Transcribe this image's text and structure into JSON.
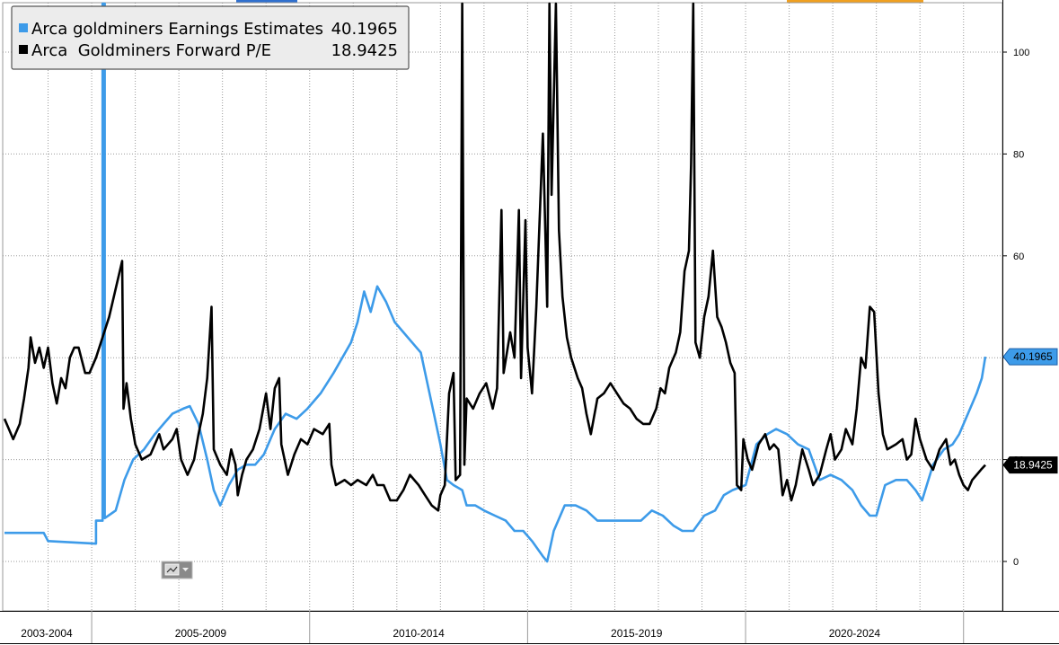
{
  "chart_data": {
    "type": "line",
    "colors": {
      "earnings": "#3d9be9",
      "pe": "#000000",
      "grid": "#9a9a9a",
      "tab_top_blue": "#2f6fce",
      "tab_top_orange": "#f0a020"
    },
    "legend": {
      "entries": [
        {
          "name": "Arca goldminers Earnings Estimates",
          "value": "40.1965"
        },
        {
          "name": "Arca  Goldminers Forward P/E",
          "value": "18.9425"
        }
      ],
      "placement": "top-left"
    },
    "y_axis": {
      "position": "right",
      "range": [
        -10,
        110
      ],
      "ticks": [
        "0",
        "20",
        "40",
        "60",
        "80",
        "100"
      ]
    },
    "x_axis": {
      "range": [
        2003.0,
        2025.5
      ],
      "bands": [
        "2003-2004",
        "2005-2009",
        "2010-2014",
        "2015-2019",
        "2020-2024"
      ]
    },
    "last_value_tags": [
      {
        "series": "earnings",
        "label": "40.1965",
        "value": 40.1965
      },
      {
        "series": "pe",
        "label": "18.9425",
        "value": 18.9425
      }
    ],
    "grid": true,
    "series": [
      {
        "key": "earnings",
        "name": "Arca goldminers Earnings Estimates",
        "points": [
          [
            2003.0,
            5.6
          ],
          [
            2003.9,
            5.6
          ],
          [
            2004.0,
            4.0
          ],
          [
            2005.1,
            3.5
          ],
          [
            2005.1,
            8.0
          ],
          [
            2005.25,
            8.0
          ],
          [
            2005.25,
            110
          ],
          [
            2005.3,
            110
          ],
          [
            2005.3,
            8.5
          ],
          [
            2005.55,
            10
          ],
          [
            2005.75,
            16
          ],
          [
            2005.95,
            20
          ],
          [
            2006.2,
            22
          ],
          [
            2006.45,
            25
          ],
          [
            2006.65,
            27
          ],
          [
            2006.85,
            29
          ],
          [
            2007.1,
            30
          ],
          [
            2007.25,
            30.5
          ],
          [
            2007.45,
            27
          ],
          [
            2007.65,
            20
          ],
          [
            2007.8,
            14
          ],
          [
            2007.95,
            11
          ],
          [
            2008.15,
            15
          ],
          [
            2008.35,
            18
          ],
          [
            2008.55,
            19
          ],
          [
            2008.75,
            19
          ],
          [
            2008.95,
            21
          ],
          [
            2009.2,
            26
          ],
          [
            2009.45,
            29
          ],
          [
            2009.7,
            28
          ],
          [
            2009.95,
            30
          ],
          [
            2010.25,
            33
          ],
          [
            2010.55,
            37
          ],
          [
            2010.75,
            40
          ],
          [
            2010.95,
            43
          ],
          [
            2011.1,
            47
          ],
          [
            2011.25,
            53
          ],
          [
            2011.4,
            49
          ],
          [
            2011.55,
            54
          ],
          [
            2011.75,
            51
          ],
          [
            2011.95,
            47
          ],
          [
            2012.15,
            45
          ],
          [
            2012.35,
            43
          ],
          [
            2012.55,
            41
          ],
          [
            2012.7,
            35
          ],
          [
            2012.85,
            29
          ],
          [
            2013.0,
            23
          ],
          [
            2013.15,
            16
          ],
          [
            2013.3,
            15
          ],
          [
            2013.5,
            14
          ],
          [
            2013.6,
            11
          ],
          [
            2013.8,
            11
          ],
          [
            2014.0,
            10
          ],
          [
            2014.25,
            9
          ],
          [
            2014.5,
            8
          ],
          [
            2014.7,
            6
          ],
          [
            2014.9,
            6
          ],
          [
            2015.1,
            4
          ],
          [
            2015.35,
            1
          ],
          [
            2015.45,
            0
          ],
          [
            2015.6,
            6
          ],
          [
            2015.85,
            11
          ],
          [
            2016.1,
            11
          ],
          [
            2016.35,
            10
          ],
          [
            2016.6,
            8
          ],
          [
            2016.85,
            8
          ],
          [
            2017.1,
            8
          ],
          [
            2017.35,
            8
          ],
          [
            2017.6,
            8
          ],
          [
            2017.85,
            10
          ],
          [
            2018.1,
            9
          ],
          [
            2018.35,
            7
          ],
          [
            2018.55,
            6
          ],
          [
            2018.8,
            6
          ],
          [
            2019.05,
            9
          ],
          [
            2019.3,
            10
          ],
          [
            2019.5,
            13
          ],
          [
            2019.7,
            14
          ],
          [
            2020.0,
            15
          ],
          [
            2020.25,
            23
          ],
          [
            2020.5,
            25
          ],
          [
            2020.7,
            26
          ],
          [
            2020.95,
            25
          ],
          [
            2021.2,
            23
          ],
          [
            2021.45,
            22
          ],
          [
            2021.7,
            16
          ],
          [
            2021.95,
            17
          ],
          [
            2022.2,
            16
          ],
          [
            2022.45,
            14
          ],
          [
            2022.65,
            11
          ],
          [
            2022.85,
            9
          ],
          [
            2023.0,
            9
          ],
          [
            2023.2,
            15
          ],
          [
            2023.45,
            16
          ],
          [
            2023.7,
            16
          ],
          [
            2023.9,
            14
          ],
          [
            2024.05,
            12
          ],
          [
            2024.3,
            19
          ],
          [
            2024.55,
            22
          ],
          [
            2024.75,
            23
          ],
          [
            2024.9,
            25
          ],
          [
            2025.1,
            29
          ],
          [
            2025.3,
            33
          ],
          [
            2025.42,
            36
          ],
          [
            2025.5,
            40.1965
          ]
        ]
      },
      {
        "key": "pe",
        "name": "Arca  Goldminers Forward P/E",
        "points": [
          [
            2003.0,
            28
          ],
          [
            2003.1,
            26
          ],
          [
            2003.2,
            24
          ],
          [
            2003.35,
            27
          ],
          [
            2003.45,
            32
          ],
          [
            2003.55,
            38
          ],
          [
            2003.6,
            44
          ],
          [
            2003.7,
            39
          ],
          [
            2003.8,
            42
          ],
          [
            2003.9,
            38
          ],
          [
            2004.0,
            42
          ],
          [
            2004.1,
            35
          ],
          [
            2004.2,
            31
          ],
          [
            2004.3,
            36
          ],
          [
            2004.4,
            34
          ],
          [
            2004.5,
            40
          ],
          [
            2004.6,
            42
          ],
          [
            2004.7,
            42
          ],
          [
            2004.85,
            37
          ],
          [
            2004.95,
            37
          ],
          [
            2005.1,
            40
          ],
          [
            2005.4,
            48
          ],
          [
            2005.7,
            59
          ],
          [
            2005.73,
            30
          ],
          [
            2005.8,
            35
          ],
          [
            2005.9,
            28
          ],
          [
            2006.0,
            23
          ],
          [
            2006.15,
            20
          ],
          [
            2006.35,
            21
          ],
          [
            2006.55,
            25
          ],
          [
            2006.65,
            22
          ],
          [
            2006.85,
            24
          ],
          [
            2006.95,
            26
          ],
          [
            2007.05,
            20
          ],
          [
            2007.2,
            17
          ],
          [
            2007.35,
            20
          ],
          [
            2007.45,
            25
          ],
          [
            2007.55,
            29
          ],
          [
            2007.65,
            36
          ],
          [
            2007.75,
            50
          ],
          [
            2007.8,
            22
          ],
          [
            2007.95,
            19
          ],
          [
            2008.1,
            17
          ],
          [
            2008.2,
            22
          ],
          [
            2008.3,
            19
          ],
          [
            2008.35,
            13
          ],
          [
            2008.45,
            17
          ],
          [
            2008.55,
            20
          ],
          [
            2008.7,
            22
          ],
          [
            2008.85,
            26
          ],
          [
            2009.0,
            33
          ],
          [
            2009.1,
            26
          ],
          [
            2009.2,
            34
          ],
          [
            2009.3,
            36
          ],
          [
            2009.35,
            23
          ],
          [
            2009.5,
            17
          ],
          [
            2009.65,
            21
          ],
          [
            2009.8,
            24
          ],
          [
            2009.95,
            23
          ],
          [
            2010.1,
            26
          ],
          [
            2010.3,
            25
          ],
          [
            2010.45,
            27
          ],
          [
            2010.5,
            19
          ],
          [
            2010.6,
            15
          ],
          [
            2010.8,
            16
          ],
          [
            2010.95,
            15
          ],
          [
            2011.1,
            16
          ],
          [
            2011.3,
            15
          ],
          [
            2011.45,
            17
          ],
          [
            2011.55,
            15
          ],
          [
            2011.7,
            15
          ],
          [
            2011.85,
            12
          ],
          [
            2012.0,
            12
          ],
          [
            2012.15,
            14
          ],
          [
            2012.3,
            17
          ],
          [
            2012.5,
            15
          ],
          [
            2012.65,
            13
          ],
          [
            2012.8,
            11
          ],
          [
            2012.95,
            10
          ],
          [
            2013.0,
            13
          ],
          [
            2013.1,
            15
          ],
          [
            2013.2,
            33
          ],
          [
            2013.3,
            37
          ],
          [
            2013.35,
            16
          ],
          [
            2013.45,
            17
          ],
          [
            2013.5,
            110
          ],
          [
            2013.55,
            19
          ],
          [
            2013.6,
            32
          ],
          [
            2013.75,
            30
          ],
          [
            2013.9,
            33
          ],
          [
            2014.05,
            35
          ],
          [
            2014.2,
            30
          ],
          [
            2014.3,
            34
          ],
          [
            2014.4,
            69
          ],
          [
            2014.45,
            37
          ],
          [
            2014.6,
            45
          ],
          [
            2014.7,
            40
          ],
          [
            2014.8,
            69
          ],
          [
            2014.85,
            36
          ],
          [
            2014.95,
            67
          ],
          [
            2015.0,
            42
          ],
          [
            2015.1,
            33
          ],
          [
            2015.2,
            50
          ],
          [
            2015.35,
            84
          ],
          [
            2015.45,
            50
          ],
          [
            2015.5,
            110
          ],
          [
            2015.55,
            72
          ],
          [
            2015.65,
            110
          ],
          [
            2015.72,
            65
          ],
          [
            2015.8,
            52
          ],
          [
            2015.9,
            44
          ],
          [
            2016.0,
            40
          ],
          [
            2016.15,
            36
          ],
          [
            2016.25,
            34
          ],
          [
            2016.35,
            29
          ],
          [
            2016.45,
            25
          ],
          [
            2016.6,
            32
          ],
          [
            2016.75,
            33
          ],
          [
            2016.9,
            35
          ],
          [
            2017.05,
            33
          ],
          [
            2017.2,
            31
          ],
          [
            2017.35,
            30
          ],
          [
            2017.5,
            28
          ],
          [
            2017.65,
            27
          ],
          [
            2017.8,
            27
          ],
          [
            2017.95,
            30
          ],
          [
            2018.05,
            34
          ],
          [
            2018.15,
            33
          ],
          [
            2018.25,
            38
          ],
          [
            2018.4,
            41
          ],
          [
            2018.5,
            45
          ],
          [
            2018.6,
            57
          ],
          [
            2018.7,
            61
          ],
          [
            2018.75,
            78
          ],
          [
            2018.8,
            110
          ],
          [
            2018.85,
            43
          ],
          [
            2018.95,
            40
          ],
          [
            2019.05,
            48
          ],
          [
            2019.15,
            52
          ],
          [
            2019.25,
            61
          ],
          [
            2019.35,
            48
          ],
          [
            2019.45,
            46
          ],
          [
            2019.55,
            43
          ],
          [
            2019.65,
            39
          ],
          [
            2019.75,
            37
          ],
          [
            2019.8,
            15
          ],
          [
            2019.9,
            14
          ],
          [
            2019.95,
            24
          ],
          [
            2020.05,
            20
          ],
          [
            2020.15,
            18
          ],
          [
            2020.3,
            23
          ],
          [
            2020.45,
            25
          ],
          [
            2020.55,
            22
          ],
          [
            2020.65,
            23
          ],
          [
            2020.75,
            22
          ],
          [
            2020.85,
            13
          ],
          [
            2020.95,
            16
          ],
          [
            2021.05,
            12
          ],
          [
            2021.15,
            15
          ],
          [
            2021.3,
            22
          ],
          [
            2021.45,
            18
          ],
          [
            2021.55,
            15
          ],
          [
            2021.7,
            17
          ],
          [
            2021.85,
            22
          ],
          [
            2021.95,
            25
          ],
          [
            2022.05,
            20
          ],
          [
            2022.2,
            22
          ],
          [
            2022.3,
            26
          ],
          [
            2022.45,
            23
          ],
          [
            2022.55,
            30
          ],
          [
            2022.65,
            40
          ],
          [
            2022.75,
            38
          ],
          [
            2022.85,
            50
          ],
          [
            2022.95,
            49
          ],
          [
            2023.05,
            33
          ],
          [
            2023.15,
            25
          ],
          [
            2023.25,
            22
          ],
          [
            2023.45,
            23
          ],
          [
            2023.6,
            24
          ],
          [
            2023.7,
            20
          ],
          [
            2023.8,
            21
          ],
          [
            2023.9,
            28
          ],
          [
            2024.0,
            24
          ],
          [
            2024.15,
            20
          ],
          [
            2024.3,
            18
          ],
          [
            2024.45,
            22
          ],
          [
            2024.6,
            24
          ],
          [
            2024.7,
            19
          ],
          [
            2024.8,
            20
          ],
          [
            2024.9,
            17
          ],
          [
            2025.0,
            15
          ],
          [
            2025.1,
            14
          ],
          [
            2025.2,
            16
          ],
          [
            2025.3,
            17
          ],
          [
            2025.4,
            18
          ],
          [
            2025.5,
            18.9425
          ]
        ]
      }
    ]
  }
}
